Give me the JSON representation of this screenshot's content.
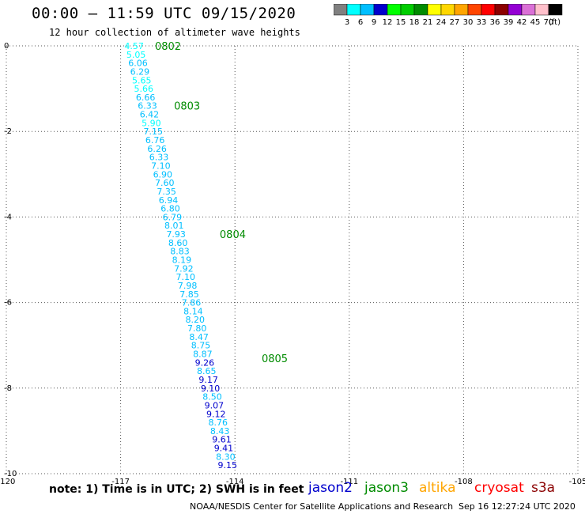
{
  "header": {
    "title": "00:00 – 11:59 UTC 09/15/2020",
    "subtitle": "12 hour collection of altimeter wave heights"
  },
  "colorbar": {
    "unit": "(ft)",
    "ticks": [
      "3",
      "6",
      "9",
      "12",
      "15",
      "18",
      "21",
      "24",
      "27",
      "30",
      "33",
      "36",
      "39",
      "42",
      "45",
      "70"
    ],
    "colors": [
      "#808080",
      "#00ffff",
      "#00bfff",
      "#0000cd",
      "#00ff00",
      "#00cd00",
      "#008b00",
      "#ffff00",
      "#ffd700",
      "#ffa500",
      "#ff4500",
      "#ff0000",
      "#8b0000",
      "#9400d3",
      "#da70d6",
      "#ffc0cb",
      "#000000"
    ]
  },
  "footer": {
    "note": "note:  1) Time is in UTC;  2) SWH is in feet",
    "satellites": [
      {
        "name": "jason2",
        "color": "#0000cd"
      },
      {
        "name": "jason3",
        "color": "#008b00"
      },
      {
        "name": "altika",
        "color": "#ffa500"
      },
      {
        "name": "cryosat",
        "color": "#ff0000"
      },
      {
        "name": "s3a",
        "color": "#8b0000"
      }
    ],
    "credit": "NOAA/NESDIS Center for Satellite Applications and Research",
    "timestamp": "Sep 16 12:27:24 UTC 2020"
  },
  "chart_data": {
    "type": "scatter",
    "title": "00:00 – 11:59 UTC 09/15/2020",
    "subtitle": "12 hour collection of altimeter wave heights",
    "xlim": [
      -120,
      -105
    ],
    "ylim": [
      -10,
      0
    ],
    "x_ticks": [
      "-120",
      "-117",
      "-114",
      "-111",
      "-108",
      "-105"
    ],
    "y_ticks": [
      "0",
      "-2",
      "-4",
      "-6",
      "-8",
      "-10"
    ],
    "grid": true,
    "time_labels": [
      {
        "text": "0802",
        "lon": -116.1,
        "lat": 0.0
      },
      {
        "text": "0803",
        "lon": -115.6,
        "lat": -1.4
      },
      {
        "text": "0804",
        "lon": -114.4,
        "lat": -4.4
      },
      {
        "text": "0805",
        "lon": -113.3,
        "lat": -7.3
      }
    ],
    "points": [
      {
        "lon": -116.9,
        "lat": 0.0,
        "swh": "4.57"
      },
      {
        "lon": -116.85,
        "lat": -0.2,
        "swh": "5.05"
      },
      {
        "lon": -116.8,
        "lat": -0.4,
        "swh": "6.06"
      },
      {
        "lon": -116.75,
        "lat": -0.6,
        "swh": "6.29"
      },
      {
        "lon": -116.7,
        "lat": -0.8,
        "swh": "5.65"
      },
      {
        "lon": -116.65,
        "lat": -1.0,
        "swh": "5.66"
      },
      {
        "lon": -116.6,
        "lat": -1.2,
        "swh": "6.66"
      },
      {
        "lon": -116.55,
        "lat": -1.4,
        "swh": "6.33"
      },
      {
        "lon": -116.5,
        "lat": -1.6,
        "swh": "6.42"
      },
      {
        "lon": -116.45,
        "lat": -1.8,
        "swh": "5.90"
      },
      {
        "lon": -116.4,
        "lat": -2.0,
        "swh": "7.15"
      },
      {
        "lon": -116.35,
        "lat": -2.2,
        "swh": "6.76"
      },
      {
        "lon": -116.3,
        "lat": -2.4,
        "swh": "6.26"
      },
      {
        "lon": -116.25,
        "lat": -2.6,
        "swh": "6.33"
      },
      {
        "lon": -116.2,
        "lat": -2.8,
        "swh": "7.10"
      },
      {
        "lon": -116.15,
        "lat": -3.0,
        "swh": "6.90"
      },
      {
        "lon": -116.1,
        "lat": -3.2,
        "swh": "7.60"
      },
      {
        "lon": -116.05,
        "lat": -3.4,
        "swh": "7.35"
      },
      {
        "lon": -116.0,
        "lat": -3.6,
        "swh": "6.94"
      },
      {
        "lon": -115.95,
        "lat": -3.8,
        "swh": "6.80"
      },
      {
        "lon": -115.9,
        "lat": -4.0,
        "swh": "6.79"
      },
      {
        "lon": -115.85,
        "lat": -4.2,
        "swh": "8.01"
      },
      {
        "lon": -115.8,
        "lat": -4.4,
        "swh": "7.93"
      },
      {
        "lon": -115.75,
        "lat": -4.6,
        "swh": "8.60"
      },
      {
        "lon": -115.7,
        "lat": -4.8,
        "swh": "8.83"
      },
      {
        "lon": -115.65,
        "lat": -5.0,
        "swh": "8.19"
      },
      {
        "lon": -115.6,
        "lat": -5.2,
        "swh": "7.92"
      },
      {
        "lon": -115.55,
        "lat": -5.4,
        "swh": "7.10"
      },
      {
        "lon": -115.5,
        "lat": -5.6,
        "swh": "7.98"
      },
      {
        "lon": -115.45,
        "lat": -5.8,
        "swh": "7.85"
      },
      {
        "lon": -115.4,
        "lat": -6.0,
        "swh": "7.86"
      },
      {
        "lon": -115.35,
        "lat": -6.2,
        "swh": "8.14"
      },
      {
        "lon": -115.3,
        "lat": -6.4,
        "swh": "8.20"
      },
      {
        "lon": -115.25,
        "lat": -6.6,
        "swh": "7.80"
      },
      {
        "lon": -115.2,
        "lat": -6.8,
        "swh": "8.47"
      },
      {
        "lon": -115.15,
        "lat": -7.0,
        "swh": "8.75"
      },
      {
        "lon": -115.1,
        "lat": -7.2,
        "swh": "8.87"
      },
      {
        "lon": -115.05,
        "lat": -7.4,
        "swh": "9.26"
      },
      {
        "lon": -115.0,
        "lat": -7.6,
        "swh": "8.65"
      },
      {
        "lon": -114.95,
        "lat": -7.8,
        "swh": "9.17"
      },
      {
        "lon": -114.9,
        "lat": -8.0,
        "swh": "9.10"
      },
      {
        "lon": -114.85,
        "lat": -8.2,
        "swh": "8.50"
      },
      {
        "lon": -114.8,
        "lat": -8.4,
        "swh": "9.07"
      },
      {
        "lon": -114.75,
        "lat": -8.6,
        "swh": "9.12"
      },
      {
        "lon": -114.7,
        "lat": -8.8,
        "swh": "8.76"
      },
      {
        "lon": -114.65,
        "lat": -9.0,
        "swh": "8.43"
      },
      {
        "lon": -114.6,
        "lat": -9.2,
        "swh": "9.61"
      },
      {
        "lon": -114.55,
        "lat": -9.4,
        "swh": "9.41"
      },
      {
        "lon": -114.5,
        "lat": -9.6,
        "swh": "8.30"
      },
      {
        "lon": -114.45,
        "lat": -9.8,
        "swh": "9.15"
      }
    ]
  }
}
